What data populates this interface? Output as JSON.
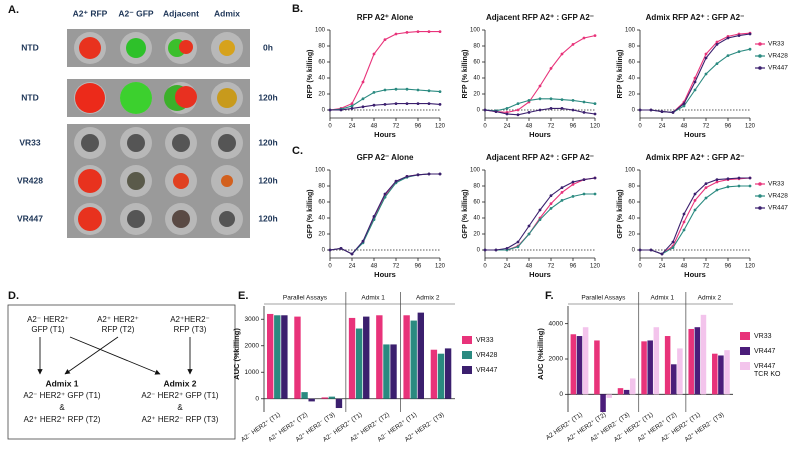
{
  "panel_labels": [
    "A.",
    "B.",
    "C.",
    "D.",
    "E.",
    "F."
  ],
  "figure_a": {
    "columns": [
      "A2⁺ RFP",
      "A2⁻ GFP",
      "Adjacent",
      "Admix"
    ],
    "rows": [
      "NTD",
      "NTD",
      "VR33",
      "VR428",
      "VR447"
    ],
    "times": [
      "0h",
      "120h",
      "120h",
      "120h",
      "120h"
    ]
  },
  "figure_d": {
    "sources": [
      {
        "lines": [
          "A2⁻ HER2⁺",
          "GFP (T1)"
        ]
      },
      {
        "lines": [
          "A2⁺ HER2⁺",
          "RFP (T2)"
        ]
      },
      {
        "lines": [
          "A2⁺HER2⁻",
          "RFP (T3)"
        ]
      }
    ],
    "targets": [
      {
        "lines": [
          "Admix 1",
          "A2⁻ HER2⁺ GFP (T1)",
          "&",
          "A2⁺ HER2⁺ RFP (T2)"
        ]
      },
      {
        "lines": [
          "Admix 2",
          "A2⁻ HER2⁺ GFP (T1)",
          "&",
          "A2⁺ HER2⁻ RFP (T3)"
        ]
      }
    ]
  },
  "chart_data": [
    {
      "type": "line",
      "title": "RFP A2⁺ Alone",
      "xlabel": "Hours",
      "ylabel": "RFP (% killing)",
      "x": [
        0,
        12,
        24,
        36,
        48,
        60,
        72,
        84,
        96,
        108,
        120
      ],
      "xlim": [
        0,
        120
      ],
      "xticks": [
        0,
        24,
        48,
        72,
        96,
        120
      ],
      "ylim": [
        -10,
        100
      ],
      "yticks": [
        0,
        20,
        40,
        60,
        80,
        100
      ],
      "zero_line": true,
      "legend": false,
      "series": [
        {
          "name": "VR33",
          "color": "#e8337a",
          "values": [
            0,
            2,
            8,
            35,
            70,
            88,
            95,
            97,
            98,
            98,
            98
          ]
        },
        {
          "name": "VR428",
          "color": "#2a8a80",
          "values": [
            0,
            1,
            5,
            14,
            22,
            25,
            26,
            26,
            25,
            24,
            23
          ]
        },
        {
          "name": "VR447",
          "color": "#3b1f6e",
          "values": [
            0,
            0,
            2,
            4,
            6,
            7,
            8,
            8,
            8,
            8,
            7
          ]
        }
      ]
    },
    {
      "type": "line",
      "title": "Adjacent RFP A2⁺ : GFP A2⁻",
      "xlabel": "Hours",
      "ylabel": "RFP (% killing)",
      "x": [
        0,
        12,
        24,
        36,
        48,
        60,
        72,
        84,
        96,
        108,
        120
      ],
      "xlim": [
        0,
        120
      ],
      "xticks": [
        0,
        24,
        48,
        72,
        96,
        120
      ],
      "ylim": [
        -10,
        100
      ],
      "yticks": [
        0,
        20,
        40,
        60,
        80,
        100
      ],
      "zero_line": true,
      "legend": false,
      "series": [
        {
          "name": "VR33",
          "color": "#e8337a",
          "values": [
            0,
            -2,
            -3,
            0,
            10,
            30,
            52,
            70,
            82,
            90,
            93
          ]
        },
        {
          "name": "VR428",
          "color": "#2a8a80",
          "values": [
            0,
            -1,
            2,
            8,
            12,
            14,
            14,
            13,
            12,
            10,
            8
          ]
        },
        {
          "name": "VR447",
          "color": "#3b1f6e",
          "values": [
            0,
            -2,
            -5,
            -6,
            -3,
            0,
            2,
            2,
            0,
            -3,
            -5
          ]
        }
      ]
    },
    {
      "type": "line",
      "title": "Admix RFP A2⁺ : GFP A2⁻",
      "xlabel": "Hours",
      "ylabel": "RFP (% killing)",
      "x": [
        0,
        12,
        24,
        36,
        48,
        60,
        72,
        84,
        96,
        108,
        120
      ],
      "xlim": [
        0,
        120
      ],
      "xticks": [
        0,
        24,
        48,
        72,
        96,
        120
      ],
      "ylim": [
        -10,
        100
      ],
      "yticks": [
        0,
        20,
        40,
        60,
        80,
        100
      ],
      "zero_line": true,
      "legend": true,
      "series": [
        {
          "name": "VR33",
          "color": "#e8337a",
          "values": [
            0,
            0,
            -2,
            -3,
            10,
            40,
            70,
            85,
            92,
            95,
            96
          ]
        },
        {
          "name": "VR428",
          "color": "#2a8a80",
          "values": [
            0,
            0,
            -2,
            -3,
            5,
            25,
            45,
            58,
            68,
            73,
            76
          ]
        },
        {
          "name": "VR447",
          "color": "#3b1f6e",
          "values": [
            0,
            0,
            -2,
            -3,
            8,
            35,
            65,
            82,
            90,
            93,
            95
          ]
        }
      ]
    },
    {
      "type": "line",
      "title": "GFP A2⁻ Alone",
      "xlabel": "Hours",
      "ylabel": "GFP (% killing)",
      "x": [
        0,
        12,
        24,
        36,
        48,
        60,
        72,
        84,
        96,
        108,
        120
      ],
      "xlim": [
        0,
        120
      ],
      "xticks": [
        0,
        24,
        48,
        72,
        96,
        120
      ],
      "ylim": [
        -10,
        100
      ],
      "yticks": [
        0,
        20,
        40,
        60,
        80,
        100
      ],
      "zero_line": true,
      "legend": false,
      "series": [
        {
          "name": "VR33",
          "color": "#e8337a",
          "values": [
            0,
            2,
            -5,
            10,
            40,
            68,
            85,
            92,
            94,
            95,
            95
          ]
        },
        {
          "name": "VR428",
          "color": "#2a8a80",
          "values": [
            0,
            2,
            -5,
            9,
            38,
            66,
            84,
            91,
            94,
            95,
            95
          ]
        },
        {
          "name": "VR447",
          "color": "#3b1f6e",
          "values": [
            0,
            2,
            -5,
            11,
            42,
            70,
            86,
            92,
            94,
            95,
            95
          ]
        }
      ]
    },
    {
      "type": "line",
      "title": "Adjacent RFP A2⁺ : GFP A2⁻",
      "xlabel": "Hours",
      "ylabel": "GFP (% killing)",
      "x": [
        0,
        12,
        24,
        36,
        48,
        60,
        72,
        84,
        96,
        108,
        120
      ],
      "xlim": [
        0,
        120
      ],
      "xticks": [
        0,
        24,
        48,
        72,
        96,
        120
      ],
      "ylim": [
        -10,
        100
      ],
      "yticks": [
        0,
        20,
        40,
        60,
        80,
        100
      ],
      "zero_line": true,
      "legend": false,
      "series": [
        {
          "name": "VR33",
          "color": "#e8337a",
          "values": [
            0,
            0,
            0,
            5,
            20,
            40,
            58,
            72,
            82,
            88,
            90
          ]
        },
        {
          "name": "VR428",
          "color": "#2a8a80",
          "values": [
            0,
            0,
            0,
            4,
            20,
            38,
            52,
            62,
            67,
            70,
            70
          ]
        },
        {
          "name": "VR447",
          "color": "#3b1f6e",
          "values": [
            0,
            0,
            2,
            10,
            30,
            50,
            68,
            78,
            85,
            88,
            90
          ]
        }
      ]
    },
    {
      "type": "line",
      "title": "Admix RPF A2⁺ : GFP A2⁻",
      "xlabel": "Hours",
      "ylabel": "GFP (% killing)",
      "x": [
        0,
        12,
        24,
        36,
        48,
        60,
        72,
        84,
        96,
        108,
        120
      ],
      "xlim": [
        0,
        120
      ],
      "xticks": [
        0,
        24,
        48,
        72,
        96,
        120
      ],
      "ylim": [
        -10,
        100
      ],
      "yticks": [
        0,
        20,
        40,
        60,
        80,
        100
      ],
      "zero_line": true,
      "legend": true,
      "series": [
        {
          "name": "VR33",
          "color": "#e8337a",
          "values": [
            0,
            0,
            -5,
            5,
            35,
            62,
            78,
            85,
            88,
            89,
            90
          ]
        },
        {
          "name": "VR428",
          "color": "#2a8a80",
          "values": [
            0,
            0,
            -5,
            3,
            25,
            50,
            65,
            75,
            79,
            80,
            80
          ]
        },
        {
          "name": "VR447",
          "color": "#3b1f6e",
          "values": [
            0,
            0,
            -5,
            10,
            45,
            70,
            83,
            88,
            89,
            90,
            90
          ]
        }
      ]
    },
    {
      "type": "bar",
      "ylabel": "AUC (%killing)",
      "ylim": [
        -500,
        3500
      ],
      "yticks": [
        0,
        1000,
        2000,
        3000
      ],
      "legend": true,
      "groups": [
        {
          "label": "Parallel Assays",
          "categories": [
            "A2⁻ HER2⁺ (T1)",
            "A2⁺ HER2⁺ (T2)",
            "A2⁺ HER2⁻ (T3)"
          ]
        },
        {
          "label": "Admix 1",
          "categories": [
            "A2⁻ HER2⁺ (T1)",
            "A2⁺ HER2⁺ (T2)"
          ]
        },
        {
          "label": "Admix 2",
          "categories": [
            "A2⁻ HER2⁺ (T1)",
            "A2⁺ HER2⁻ (T3)"
          ]
        }
      ],
      "series": [
        {
          "name": "VR33",
          "color": "#e8337a",
          "values": [
            3200,
            3100,
            50,
            3050,
            3150,
            3150,
            1850
          ]
        },
        {
          "name": "VR428",
          "color": "#2a8a80",
          "values": [
            3150,
            250,
            80,
            2650,
            2050,
            2950,
            1700
          ]
        },
        {
          "name": "VR447",
          "color": "#3b1f6e",
          "values": [
            3150,
            -100,
            -350,
            3100,
            2050,
            3250,
            1900
          ]
        }
      ]
    },
    {
      "type": "bar",
      "ylabel": "AUC (%killing)",
      "ylim": [
        -1000,
        5000
      ],
      "yticks": [
        0,
        2000,
        4000
      ],
      "legend": true,
      "groups": [
        {
          "label": "Parallel Assays",
          "categories": [
            "A2 HER2⁺ (T1)",
            "A2⁺ HER2⁺ (T2)",
            "A2⁺ HER2⁻ (T3)"
          ]
        },
        {
          "label": "Admix 1",
          "categories": [
            "A2⁻ HER2⁺ (T1)",
            "A2⁺ HER2⁺ (T2)"
          ]
        },
        {
          "label": "Admix 2",
          "categories": [
            "A2⁻ HER2⁺ (T1)",
            "A2⁺ HER2⁻ (T3)"
          ]
        }
      ],
      "series": [
        {
          "name": "VR33",
          "color": "#e8337a",
          "values": [
            3400,
            3050,
            350,
            3000,
            3300,
            3700,
            2300
          ]
        },
        {
          "name": "VR447",
          "color": "#4b1d7a",
          "values": [
            3300,
            -1000,
            250,
            3050,
            1700,
            3800,
            2200
          ]
        },
        {
          "name": "VR447 TCR KO",
          "color": "#f3c4ec",
          "values": [
            3800,
            -200,
            900,
            3800,
            2600,
            4500,
            2500
          ]
        }
      ]
    }
  ]
}
